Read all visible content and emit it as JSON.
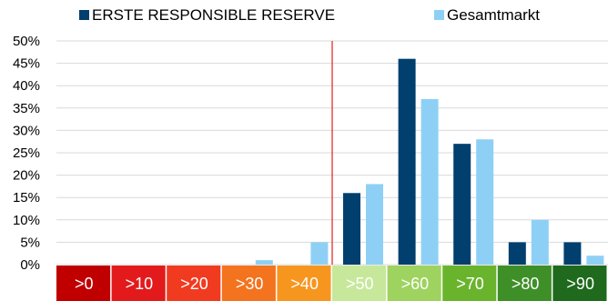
{
  "chart_data": {
    "type": "bar",
    "categories": [
      ">0",
      ">10",
      ">20",
      ">30",
      ">40",
      ">50",
      ">60",
      ">70",
      ">80",
      ">90"
    ],
    "category_colors": [
      "#c00000",
      "#e31a1c",
      "#f03b20",
      "#f4731e",
      "#f7961e",
      "#c7e89b",
      "#9ed35f",
      "#6ab42d",
      "#3f8f28",
      "#1f6a1c"
    ],
    "series": [
      {
        "name": "ERSTE RESPONSIBLE RESERVE",
        "color": "#003f6e",
        "values": [
          0,
          0,
          0,
          0,
          0,
          16,
          46,
          27,
          5,
          5
        ]
      },
      {
        "name": "Gesamtmarkt",
        "color": "#8ed0f5",
        "values": [
          0,
          0,
          0,
          1,
          5,
          18,
          37,
          28,
          10,
          2
        ]
      }
    ],
    "y_ticks": [
      "0%",
      "5%",
      "10%",
      "15%",
      "20%",
      "25%",
      "30%",
      "35%",
      "40%",
      "45%",
      "50%"
    ],
    "ylim": [
      0,
      50
    ],
    "reference_line": {
      "after_category_index": 4,
      "color": "#e0201b"
    },
    "legend_position": "top"
  }
}
